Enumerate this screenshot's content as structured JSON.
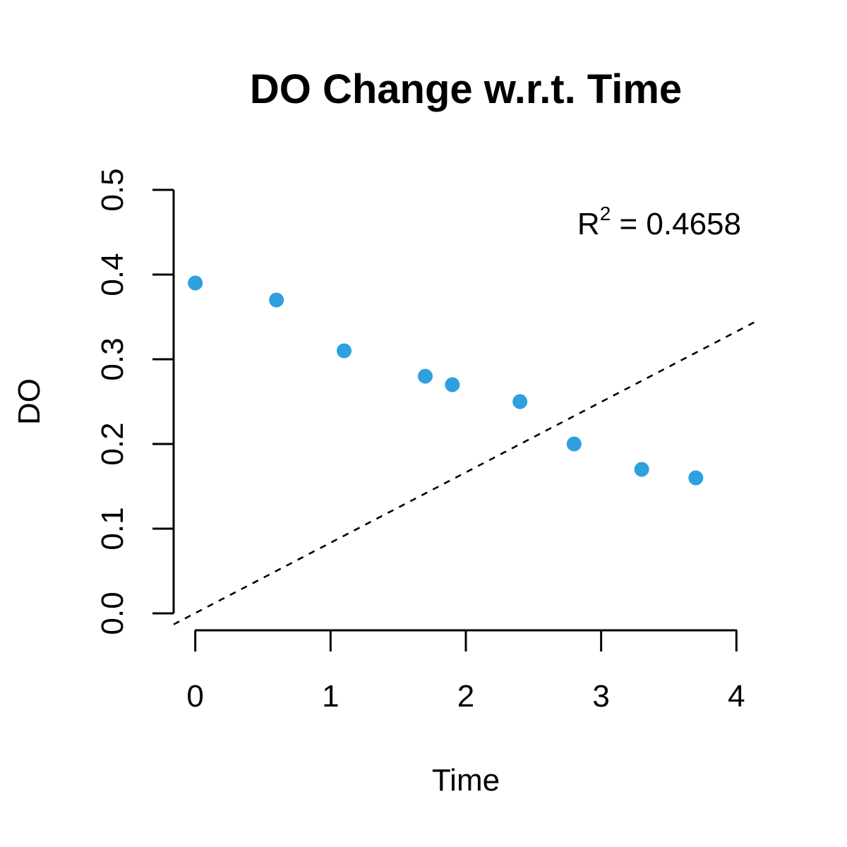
{
  "chart_data": {
    "type": "scatter",
    "title": "DO Change w.r.t. Time",
    "xlabel": "Time",
    "ylabel": "DO",
    "xlim": [
      -0.16,
      4.16
    ],
    "ylim": [
      0.0,
      0.5
    ],
    "x_ticks": [
      0,
      1,
      2,
      3,
      4
    ],
    "x_tick_labels": [
      "0",
      "1",
      "2",
      "3",
      "4"
    ],
    "y_ticks": [
      0.0,
      0.1,
      0.2,
      0.3,
      0.4,
      0.5
    ],
    "y_tick_labels": [
      "0.0",
      "0.1",
      "0.2",
      "0.3",
      "0.4",
      "0.5"
    ],
    "grid": false,
    "series": [
      {
        "x": [
          0,
          0.6,
          1.1,
          1.7,
          1.9,
          2.4,
          2.8,
          3.3,
          3.7
        ],
        "y": [
          0.39,
          0.37,
          0.31,
          0.28,
          0.27,
          0.25,
          0.2,
          0.17,
          0.16
        ],
        "color": "#2e9fdf",
        "marker": "filled-circle"
      }
    ],
    "reference_line": {
      "style": "dashed",
      "color": "#000000",
      "x": [
        -0.16,
        4.16
      ],
      "y": [
        -0.013,
        0.346
      ]
    },
    "annotation": {
      "base": "R",
      "superscript": "2",
      "text": " = 0.4658",
      "placement": "top-right"
    }
  }
}
